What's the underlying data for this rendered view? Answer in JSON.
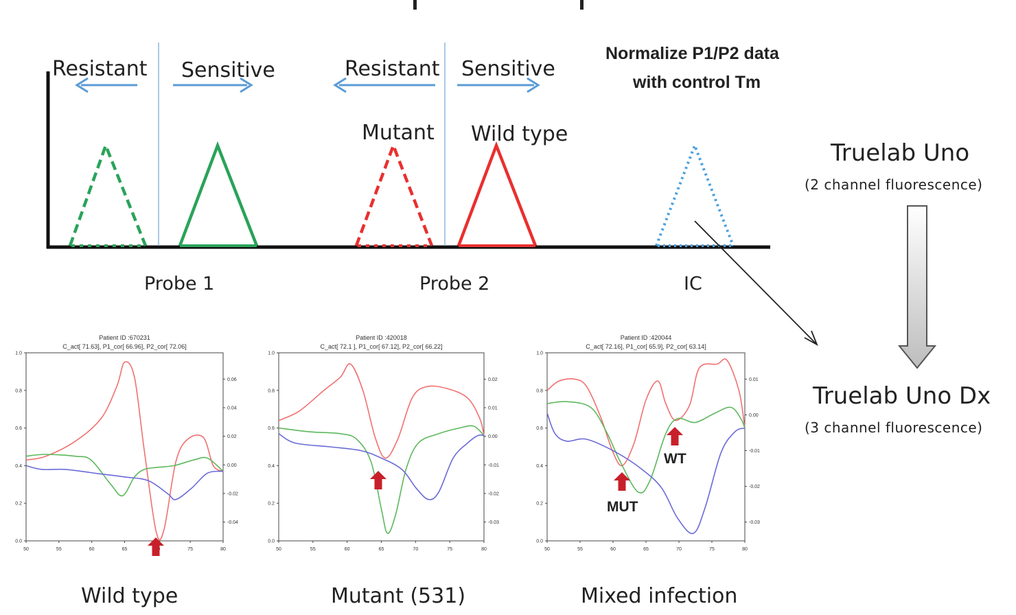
{
  "schematic": {
    "probe1": {
      "left_label": "Resistant",
      "right_label": "Sensitive",
      "axis_label": "Probe 1",
      "color": "#2aa35a"
    },
    "probe2": {
      "left_label": "Resistant",
      "right_label": "Sensitive",
      "axis_label": "Probe 2",
      "mutant_label": "Mutant",
      "wildtype_label": "Wild type",
      "color": "#e8302f"
    },
    "ic": {
      "axis_label": "IC",
      "note_line1": "Normalize P1/P2  data",
      "note_line2": "with control Tm",
      "color": "#4aa0e0"
    },
    "arrow_color": "#5b9bd5"
  },
  "devices": {
    "from": {
      "name": "Truelab Uno",
      "sub": "(2 channel fluorescence)"
    },
    "to": {
      "name": "Truelab Uno Dx",
      "sub": "(3 channel fluorescence)"
    }
  },
  "plots": [
    {
      "caption": "Wild type",
      "title1": "Patient ID :670231",
      "title2": "C_act[ 71.63], P1_cor[ 66.96], P2_cor[ 72.06]",
      "left_ticks": [
        "1.0",
        "0.8",
        "0.6",
        "0.4",
        "0.2",
        "0.0"
      ],
      "right_ticks": [
        "0.06",
        "0.04",
        "0.02",
        "0.00",
        "-0.02",
        "-0.04"
      ],
      "x_ticks": [
        "50",
        "55",
        "60",
        "65",
        "70",
        "75",
        "80"
      ]
    },
    {
      "caption": "Mutant (531)",
      "title1": "Patient ID :420018",
      "title2": "C_act[ 72.1 ], P1_cor[ 67.12], P2_cor[ 66.22]",
      "left_ticks": [
        "1.0",
        "0.8",
        "0.6",
        "0.4",
        "0.2",
        "0.0"
      ],
      "right_ticks": [
        "0.02",
        "0.01",
        "0.00",
        "-0.01",
        "-0.02",
        "-0.03"
      ],
      "x_ticks": [
        "50",
        "55",
        "60",
        "65",
        "70",
        "75",
        "80"
      ]
    },
    {
      "caption": "Mixed infection",
      "title1": "Patient ID :420044",
      "title2": "C_act[ 72.16], P1_cor[ 65.9], P2_cor[ 63.14]",
      "left_ticks": [
        "1.0",
        "0.8",
        "0.6",
        "0.4",
        "0.2",
        "0.0"
      ],
      "right_ticks": [
        "0.01",
        "0.00",
        "-0.01",
        "-0.02",
        "-0.03"
      ],
      "x_ticks": [
        "50",
        "55",
        "60",
        "65",
        "70",
        "75",
        "80"
      ],
      "mut_label": "MUT",
      "wt_label": "WT"
    }
  ],
  "curve_colors": {
    "red": "#f07070",
    "green": "#5cb85c",
    "blue": "#6a6ad8",
    "marker": "#c8202a"
  }
}
